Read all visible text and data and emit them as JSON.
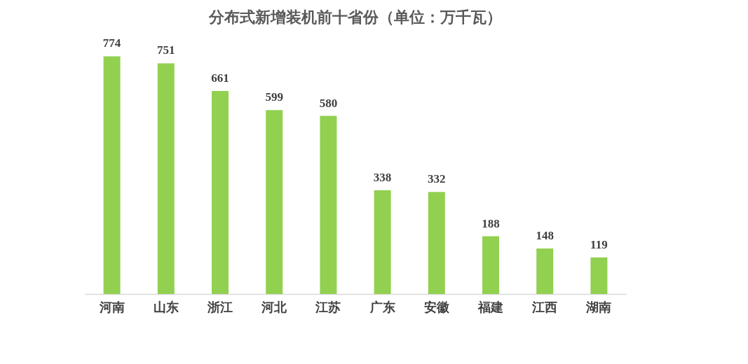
{
  "chart_data": {
    "type": "bar",
    "title": "分布式新增装机前十省份（单位：万千瓦）",
    "categories": [
      "河南",
      "山东",
      "浙江",
      "河北",
      "江苏",
      "广东",
      "安徽",
      "福建",
      "江西",
      "湖南"
    ],
    "values": [
      774,
      751,
      661,
      599,
      580,
      338,
      332,
      188,
      148,
      119
    ],
    "color": "#92d050",
    "data_labels": true,
    "tick_labels": "x"
  }
}
